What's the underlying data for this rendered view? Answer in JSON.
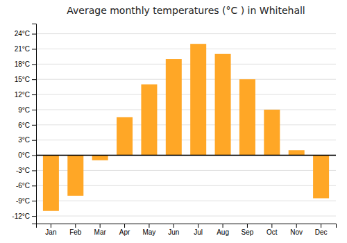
{
  "chart_data": {
    "type": "bar",
    "title": "Average monthly temperatures (°C ) in Whitehall",
    "categories": [
      "Jan",
      "Feb",
      "Mar",
      "Apr",
      "May",
      "Jun",
      "Jul",
      "Aug",
      "Sep",
      "Oct",
      "Nov",
      "Dec"
    ],
    "values": [
      -11,
      -8,
      -1,
      7.5,
      14,
      19,
      22,
      20,
      15,
      9,
      1,
      -8.5
    ],
    "color": "#FFA726",
    "ylim": [
      -13.5,
      26
    ],
    "yticks": [
      {
        "value": -12,
        "label": "-12°C"
      },
      {
        "value": -9,
        "label": "-9°C"
      },
      {
        "value": -6,
        "label": "-6°C"
      },
      {
        "value": -3,
        "label": "-3°C"
      },
      {
        "value": 0,
        "label": "0°C"
      },
      {
        "value": 3,
        "label": "3°C"
      },
      {
        "value": 6,
        "label": "6°C"
      },
      {
        "value": 9,
        "label": "9°C"
      },
      {
        "value": 12,
        "label": "12°C"
      },
      {
        "value": 15,
        "label": "15°C"
      },
      {
        "value": 18,
        "label": "18°C"
      },
      {
        "value": 21,
        "label": "21°C"
      },
      {
        "value": 24,
        "label": "24°C"
      }
    ],
    "grid": true
  }
}
